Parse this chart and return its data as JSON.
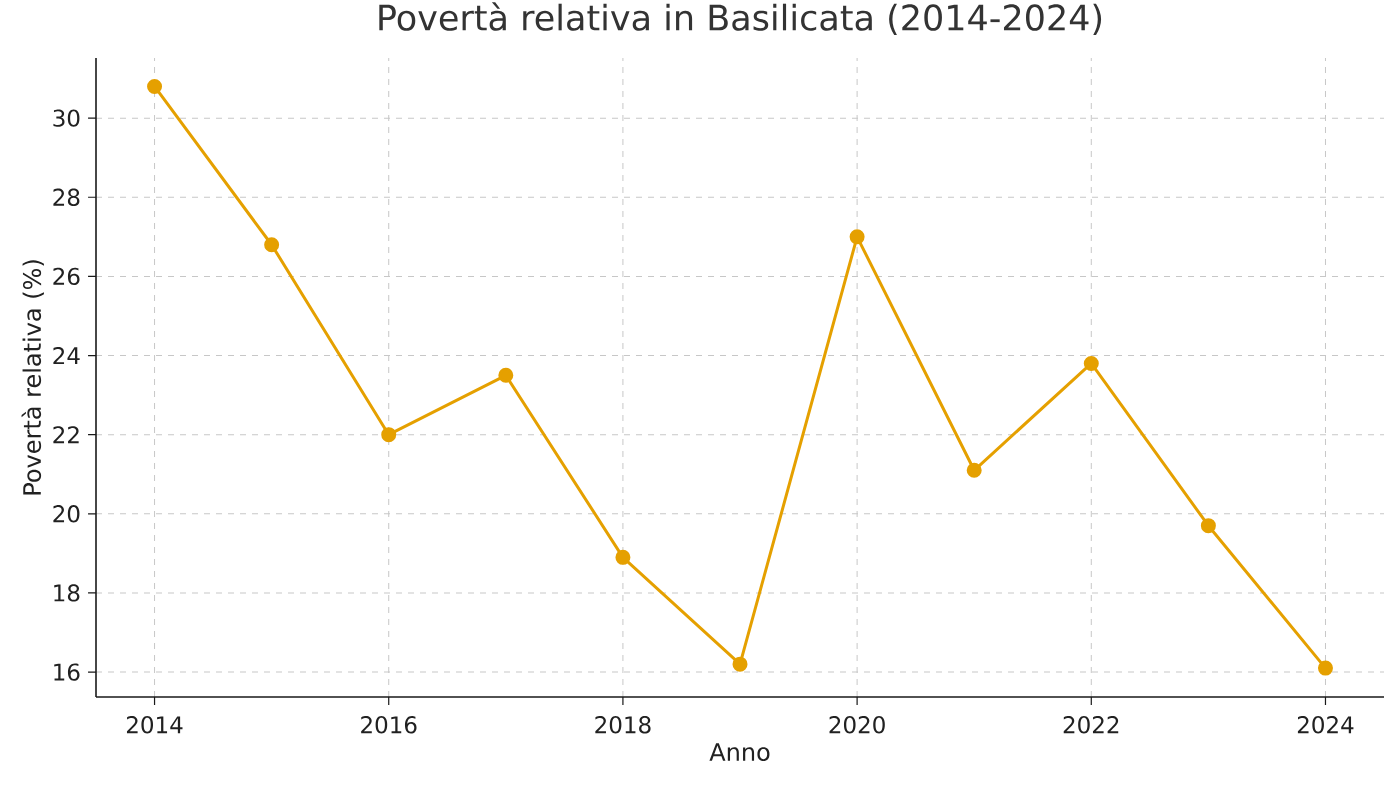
{
  "chart_data": {
    "type": "line",
    "title": "Povertà relativa in Basilicata (2014-2024)",
    "xlabel": "Anno",
    "ylabel": "Povertà relativa (%)",
    "x": [
      2014,
      2015,
      2016,
      2017,
      2018,
      2019,
      2020,
      2021,
      2022,
      2023,
      2024
    ],
    "series": [
      {
        "color": "#e5a000",
        "values": [
          30.8,
          26.8,
          22.0,
          23.5,
          18.9,
          16.2,
          27.0,
          21.1,
          23.8,
          19.7,
          16.1
        ]
      }
    ],
    "xlim": [
      2013.5,
      2024.5
    ],
    "ylim": [
      15.37,
      31.52
    ],
    "xticks": [
      2014,
      2016,
      2018,
      2020,
      2022,
      2024
    ],
    "yticks": [
      16,
      18,
      20,
      22,
      24,
      26,
      28,
      30
    ],
    "grid": true,
    "marker": "circle",
    "line_style": "solid"
  }
}
